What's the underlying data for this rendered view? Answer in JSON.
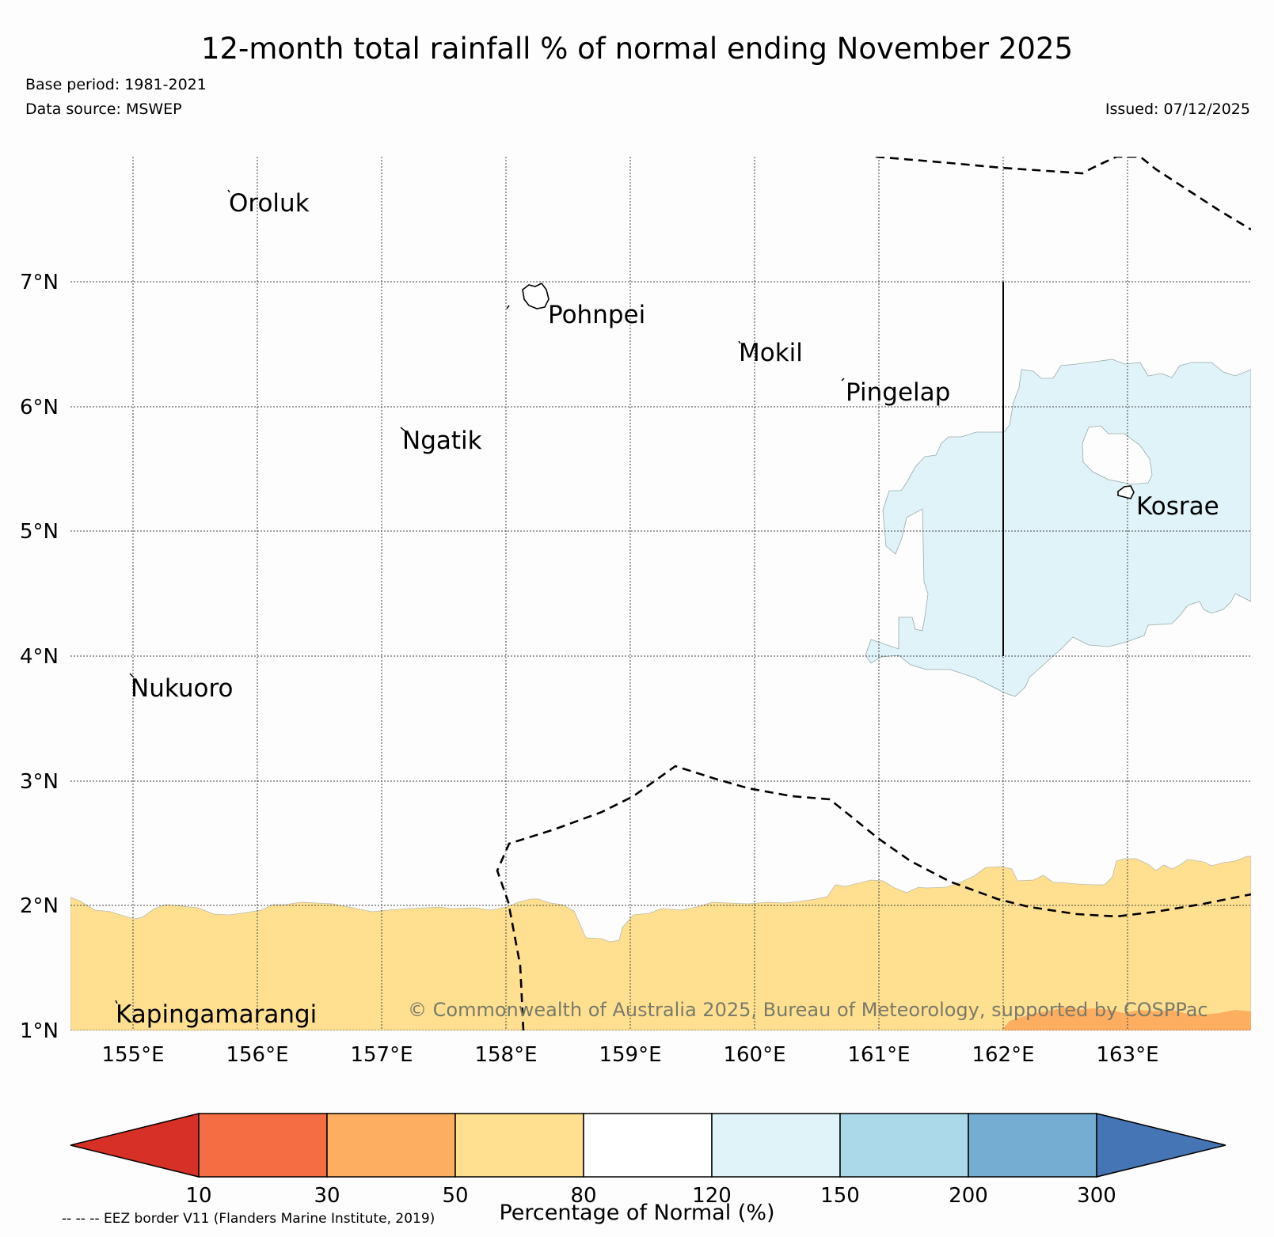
{
  "title": "12-month total rainfall % of normal ending November 2025",
  "base_period": "Base period: 1981-2021",
  "data_source": "Data source: MSWEP",
  "issued": "Issued: 07/12/2025",
  "copyright": "© Commonwealth of Australia 2025, Bureau of Meteorology, supported by COSPPac",
  "eez_note": "-- -- -- EEZ border V11 (Flanders Marine Institute, 2019)",
  "map": {
    "lon_range": [
      154.5,
      164.0
    ],
    "lat_range": [
      1.0,
      8.0
    ],
    "lon_ticks": [
      "155°E",
      "156°E",
      "157°E",
      "158°E",
      "159°E",
      "160°E",
      "161°E",
      "162°E",
      "163°E"
    ],
    "lat_ticks": [
      "7°N",
      "6°N",
      "5°N",
      "4°N",
      "3°N",
      "2°N",
      "1°N"
    ],
    "islands": [
      {
        "name": "Oroluk",
        "lon": 155.7,
        "lat": 7.6
      },
      {
        "name": "Pohnpei",
        "lon": 158.2,
        "lat": 6.85
      },
      {
        "name": "Mokil",
        "lon": 159.8,
        "lat": 6.7
      },
      {
        "name": "Pingelap",
        "lon": 160.7,
        "lat": 6.2
      },
      {
        "name": "Ngatik",
        "lon": 157.1,
        "lat": 5.8
      },
      {
        "name": "Kosrae",
        "lon": 162.98,
        "lat": 5.32
      },
      {
        "name": "Nukuoro",
        "lon": 154.95,
        "lat": 3.85
      },
      {
        "name": "Kapingamarangi",
        "lon": 154.8,
        "lat": 1.1
      }
    ]
  },
  "colorbar": {
    "label": "Percentage of Normal (%)",
    "ticks": [
      "10",
      "30",
      "50",
      "80",
      "120",
      "150",
      "200",
      "300"
    ],
    "colors": [
      "#d73027",
      "#f46d43",
      "#fdae61",
      "#fee090",
      "#ffffff",
      "#e0f3f8",
      "#abd9e9",
      "#74add1",
      "#4575b4"
    ]
  }
}
